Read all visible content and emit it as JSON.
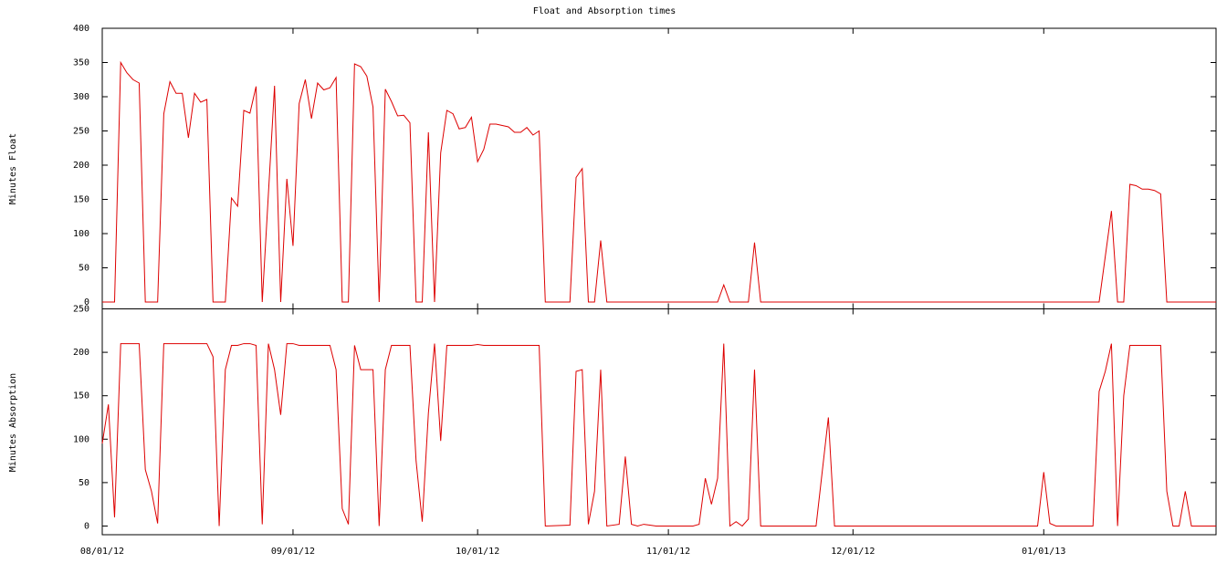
{
  "chart_data": [
    {
      "type": "line",
      "title": "Float and Absorption times",
      "ylabel": "Minutes Float",
      "color": "#dd0000",
      "xlim": [
        "2012-08-01",
        "2013-01-29"
      ],
      "ylim": [
        -10,
        400
      ],
      "yticks": [
        0,
        50,
        100,
        150,
        200,
        250,
        300,
        350,
        400
      ],
      "x": [
        "2012-08-01",
        "2012-08-02",
        "2012-08-03",
        "2012-08-04",
        "2012-08-05",
        "2012-08-06",
        "2012-08-07",
        "2012-08-08",
        "2012-08-09",
        "2012-08-10",
        "2012-08-11",
        "2012-08-12",
        "2012-08-13",
        "2012-08-14",
        "2012-08-15",
        "2012-08-16",
        "2012-08-17",
        "2012-08-18",
        "2012-08-19",
        "2012-08-20",
        "2012-08-21",
        "2012-08-22",
        "2012-08-23",
        "2012-08-24",
        "2012-08-25",
        "2012-08-26",
        "2012-08-27",
        "2012-08-29",
        "2012-08-30",
        "2012-08-31",
        "2012-09-01",
        "2012-09-02",
        "2012-09-03",
        "2012-09-04",
        "2012-09-05",
        "2012-09-06",
        "2012-09-07",
        "2012-09-08",
        "2012-09-09",
        "2012-09-10",
        "2012-09-11",
        "2012-09-12",
        "2012-09-13",
        "2012-09-14",
        "2012-09-15",
        "2012-09-16",
        "2012-09-17",
        "2012-09-18",
        "2012-09-19",
        "2012-09-20",
        "2012-09-21",
        "2012-09-22",
        "2012-09-23",
        "2012-09-24",
        "2012-09-25",
        "2012-09-26",
        "2012-09-27",
        "2012-09-28",
        "2012-09-29",
        "2012-09-30",
        "2012-10-01",
        "2012-10-02",
        "2012-10-03",
        "2012-10-04",
        "2012-10-05",
        "2012-10-06",
        "2012-10-07",
        "2012-10-08",
        "2012-10-09",
        "2012-10-10",
        "2012-10-11",
        "2012-10-12",
        "2012-10-16",
        "2012-10-17",
        "2012-10-18",
        "2012-10-19",
        "2012-10-20",
        "2012-10-21",
        "2012-10-22",
        "2012-11-09",
        "2012-11-10",
        "2012-11-11",
        "2012-11-14",
        "2012-11-15",
        "2012-11-16",
        "2013-01-10",
        "2013-01-12",
        "2013-01-13",
        "2013-01-14",
        "2013-01-15",
        "2013-01-16",
        "2013-01-17",
        "2013-01-18",
        "2013-01-19",
        "2013-01-20",
        "2013-01-21",
        "2013-01-29"
      ],
      "values": [
        0,
        0,
        0,
        350,
        335,
        325,
        320,
        0,
        0,
        0,
        275,
        322,
        305,
        305,
        240,
        305,
        292,
        296,
        0,
        0,
        0,
        152,
        140,
        280,
        276,
        315,
        0,
        316,
        0,
        180,
        82,
        290,
        325,
        268,
        320,
        310,
        313,
        328,
        0,
        0,
        348,
        344,
        330,
        285,
        0,
        311,
        293,
        272,
        273,
        262,
        0,
        0,
        248,
        0,
        218,
        280,
        275,
        253,
        255,
        270,
        205,
        223,
        260,
        260,
        258,
        256,
        248,
        248,
        255,
        244,
        250,
        0,
        0,
        182,
        195,
        0,
        0,
        90,
        0,
        0,
        25,
        0,
        0,
        87,
        0,
        0,
        133,
        0,
        0,
        172,
        170,
        165,
        165,
        163,
        158,
        0,
        0
      ]
    },
    {
      "type": "line",
      "ylabel": "Minutes Absorption",
      "color": "#dd0000",
      "xlim": [
        "2012-08-01",
        "2013-01-29"
      ],
      "ylim": [
        -10,
        250
      ],
      "yticks": [
        0,
        50,
        100,
        150,
        200,
        250
      ],
      "xticks": [
        {
          "value": "2012-08-01",
          "label": "08/01/12"
        },
        {
          "value": "2012-09-01",
          "label": "09/01/12"
        },
        {
          "value": "2012-10-01",
          "label": "10/01/12"
        },
        {
          "value": "2012-11-01",
          "label": "11/01/12"
        },
        {
          "value": "2012-12-01",
          "label": "12/01/12"
        },
        {
          "value": "2013-01-01",
          "label": "01/01/13"
        }
      ],
      "x": [
        "2012-08-01",
        "2012-08-02",
        "2012-08-03",
        "2012-08-04",
        "2012-08-07",
        "2012-08-08",
        "2012-08-09",
        "2012-08-10",
        "2012-08-11",
        "2012-08-18",
        "2012-08-19",
        "2012-08-20",
        "2012-08-21",
        "2012-08-22",
        "2012-08-23",
        "2012-08-24",
        "2012-08-25",
        "2012-08-26",
        "2012-08-27",
        "2012-08-28",
        "2012-08-29",
        "2012-08-30",
        "2012-08-31",
        "2012-09-01",
        "2012-09-02",
        "2012-09-07",
        "2012-09-08",
        "2012-09-09",
        "2012-09-10",
        "2012-09-11",
        "2012-09-12",
        "2012-09-14",
        "2012-09-15",
        "2012-09-16",
        "2012-09-17",
        "2012-09-20",
        "2012-09-21",
        "2012-09-22",
        "2012-09-23",
        "2012-09-24",
        "2012-09-25",
        "2012-09-26",
        "2012-09-30",
        "2012-10-01",
        "2012-10-02",
        "2012-10-11",
        "2012-10-12",
        "2012-10-16",
        "2012-10-17",
        "2012-10-18",
        "2012-10-19",
        "2012-10-20",
        "2012-10-21",
        "2012-10-22",
        "2012-10-24",
        "2012-10-25",
        "2012-10-26",
        "2012-10-27",
        "2012-10-28",
        "2012-10-29",
        "2012-10-30",
        "2012-11-05",
        "2012-11-06",
        "2012-11-07",
        "2012-11-08",
        "2012-11-09",
        "2012-11-10",
        "2012-11-11",
        "2012-11-12",
        "2012-11-13",
        "2012-11-14",
        "2012-11-15",
        "2012-11-16",
        "2012-11-25",
        "2012-11-27",
        "2012-11-28",
        "2012-12-31",
        "2013-01-01",
        "2013-01-02",
        "2013-01-03",
        "2013-01-09",
        "2013-01-10",
        "2013-01-11",
        "2013-01-12",
        "2013-01-13",
        "2013-01-14",
        "2013-01-15",
        "2013-01-20",
        "2013-01-21",
        "2013-01-22",
        "2013-01-23",
        "2013-01-24",
        "2013-01-25",
        "2013-01-29"
      ],
      "values": [
        95,
        140,
        10,
        210,
        210,
        65,
        40,
        3,
        210,
        210,
        195,
        0,
        180,
        208,
        208,
        210,
        210,
        208,
        2,
        210,
        180,
        128,
        210,
        210,
        208,
        208,
        180,
        20,
        2,
        208,
        180,
        180,
        0,
        180,
        208,
        208,
        75,
        5,
        130,
        210,
        98,
        208,
        208,
        209,
        208,
        208,
        0,
        1,
        178,
        180,
        2,
        40,
        180,
        0,
        2,
        80,
        2,
        0,
        2,
        1,
        0,
        0,
        2,
        55,
        25,
        55,
        210,
        0,
        5,
        0,
        8,
        180,
        0,
        0,
        125,
        0,
        0,
        62,
        3,
        0,
        0,
        155,
        178,
        210,
        0,
        150,
        208,
        208,
        40,
        0,
        0,
        40,
        0,
        0
      ]
    }
  ]
}
